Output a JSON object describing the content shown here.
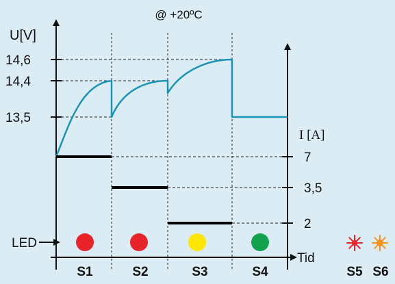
{
  "chart_data": {
    "type": "line",
    "title": "@ +20ºC",
    "voltage_axis": {
      "label": "U[V]",
      "ticks": [
        "14,6",
        "14,4",
        "13,5"
      ],
      "tick_values": [
        14.6,
        14.4,
        13.5
      ]
    },
    "current_axis": {
      "label": "I [A]",
      "ticks": [
        "7",
        "3,5",
        "2"
      ],
      "tick_values": [
        7,
        3.5,
        2
      ]
    },
    "x_axis": {
      "label": "Tid"
    },
    "stages": [
      "S1",
      "S2",
      "S3",
      "S4"
    ],
    "voltage_curve": [
      {
        "stage": "S1",
        "start": 12.6,
        "end": 14.4
      },
      {
        "stage": "S2",
        "start": 13.5,
        "end": 14.4
      },
      {
        "stage": "S3",
        "start": 14.2,
        "end": 14.6
      },
      {
        "stage": "S4",
        "start": 13.5,
        "end": 13.5
      }
    ],
    "current_levels": [
      {
        "stage": "S1",
        "value": 7
      },
      {
        "stage": "S2",
        "value": 3.5
      },
      {
        "stage": "S3",
        "value": 2
      }
    ],
    "led_label": "LED",
    "led_colors": [
      "#e8232a",
      "#e8232a",
      "#ffe600",
      "#12a24e"
    ],
    "extra_stages": [
      {
        "label": "S5",
        "icon": "red-burst-icon",
        "color": "#e8232a"
      },
      {
        "label": "S6",
        "icon": "orange-burst-icon",
        "color": "#f7941d"
      }
    ]
  }
}
